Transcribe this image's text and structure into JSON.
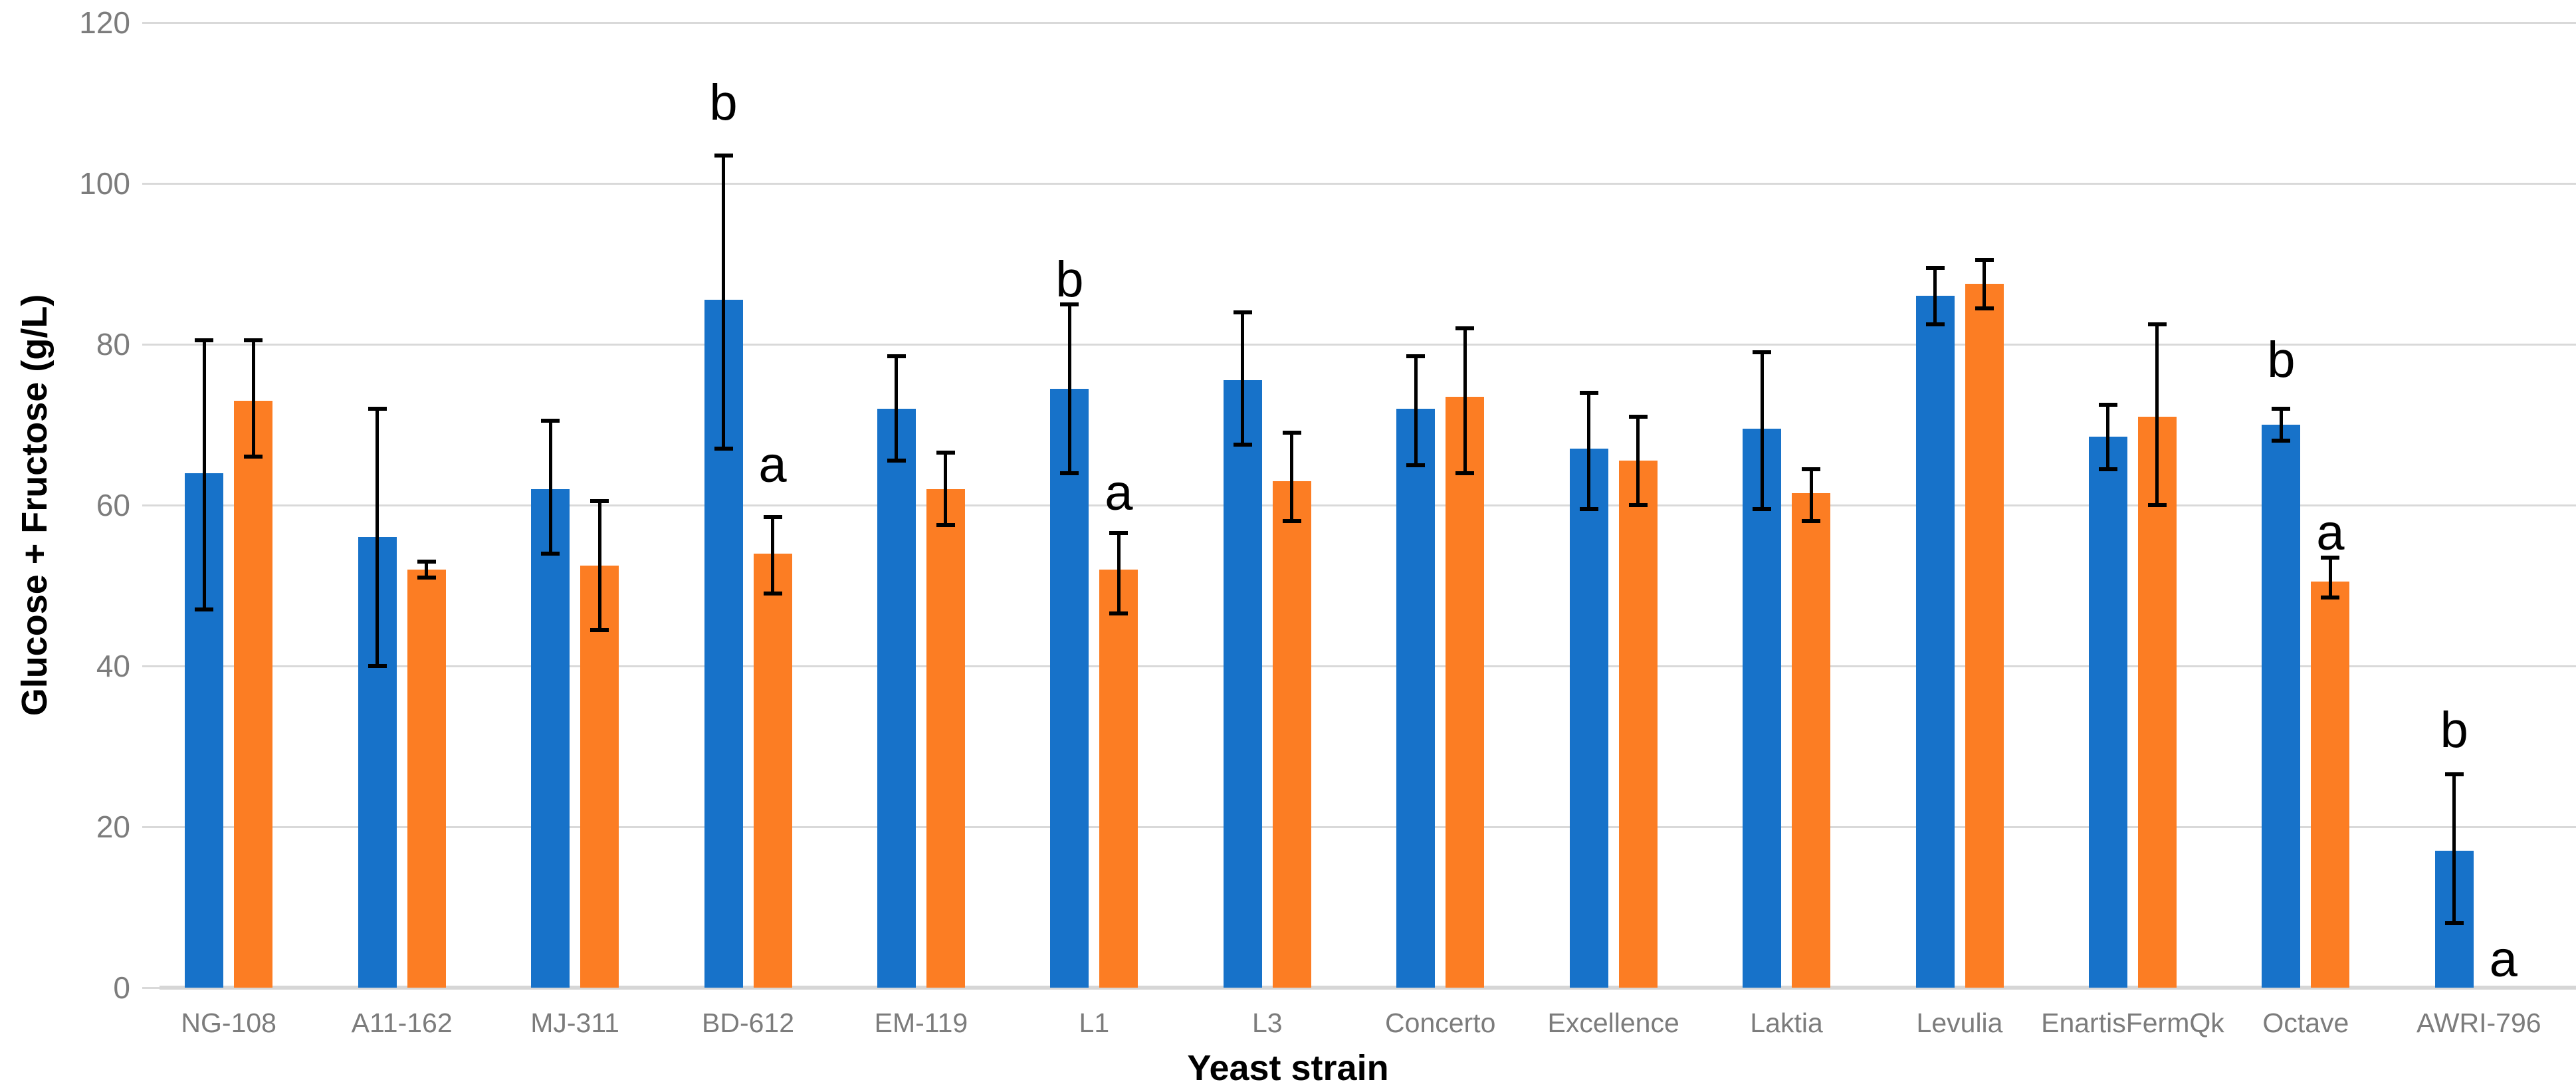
{
  "chart_data": {
    "type": "bar",
    "title": "",
    "xlabel": "Yeast strain",
    "ylabel": "Glucose + Fructose (g/L)",
    "ylim": [
      0,
      120
    ],
    "yticks": [
      0,
      20,
      40,
      60,
      80,
      100,
      120
    ],
    "grid": "horizontal",
    "legend": "none",
    "colors": {
      "blue": "#1772c9",
      "orange": "#fc7d23",
      "gridline": "#d9d9d9",
      "axis_text": "#7c7c7c",
      "annotation_text": "#000000"
    },
    "categories": [
      "NG-108",
      "A11-162",
      "MJ-311",
      "BD-612",
      "EM-119",
      "L1",
      "L3",
      "Concerto",
      "Excellence",
      "Laktia",
      "Levulia",
      "EnartisFermQk",
      "Octave",
      "AWRI-796"
    ],
    "series": [
      {
        "name": "blue",
        "color": "#1772c9",
        "values": [
          64,
          56,
          62,
          85.5,
          72,
          74.5,
          75.5,
          72,
          67,
          69.5,
          86,
          68.5,
          70,
          17
        ],
        "err_low": [
          47,
          40,
          54,
          67,
          65.5,
          64,
          67.5,
          65,
          59.5,
          59.5,
          82.5,
          64.5,
          68,
          8
        ],
        "err_high": [
          80.5,
          72,
          70.5,
          103.5,
          78.5,
          85,
          84,
          78.5,
          74,
          79,
          89.5,
          72.5,
          72,
          26.5
        ]
      },
      {
        "name": "orange",
        "color": "#fc7d23",
        "values": [
          73,
          52,
          52.5,
          54,
          62,
          52,
          63,
          73.5,
          65.5,
          61.5,
          87.5,
          71,
          50.5,
          0
        ],
        "err_low": [
          66,
          51,
          44.5,
          49,
          57.5,
          46.5,
          58,
          64,
          60,
          58,
          84.5,
          60,
          48.5,
          null
        ],
        "err_high": [
          80.5,
          53,
          60.5,
          58.5,
          66.5,
          56.5,
          69,
          82,
          71,
          64.5,
          90.5,
          82.5,
          53.5,
          null
        ]
      }
    ],
    "annotations": [
      {
        "category": "BD-612",
        "series": "blue",
        "letter": "b",
        "y": 110
      },
      {
        "category": "BD-612",
        "series": "orange",
        "letter": "a",
        "y": 65
      },
      {
        "category": "L1",
        "series": "blue",
        "letter": "b",
        "y": 88
      },
      {
        "category": "L1",
        "series": "orange",
        "letter": "a",
        "y": 61.5
      },
      {
        "category": "Octave",
        "series": "blue",
        "letter": "b",
        "y": 78
      },
      {
        "category": "Octave",
        "series": "orange",
        "letter": "a",
        "y": 56.5
      },
      {
        "category": "AWRI-796",
        "series": "blue",
        "letter": "b",
        "y": 32
      },
      {
        "category": "AWRI-796",
        "series": "orange",
        "letter": "a",
        "y": 3.5
      }
    ]
  }
}
